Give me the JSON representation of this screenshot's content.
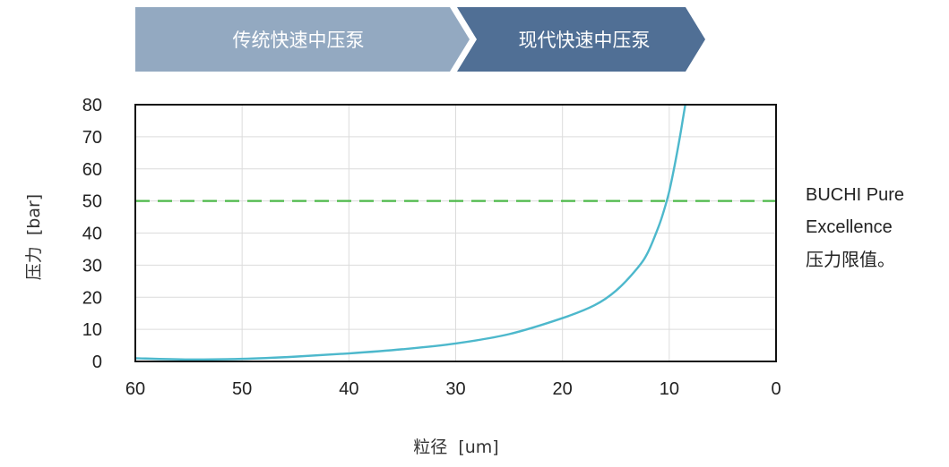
{
  "banner": {
    "left_label": "传统快速中压泵",
    "right_label": "现代快速中压泵",
    "left_color": "#93a9c1",
    "right_color": "#506f95"
  },
  "chart_data": {
    "type": "line",
    "xlabel": "粒径  [um]",
    "ylabel": "压力  [bar]",
    "xlim": [
      60,
      0
    ],
    "ylim": [
      0,
      80
    ],
    "x_ticks": [
      "60",
      "50",
      "40",
      "30",
      "20",
      "10",
      "0"
    ],
    "y_ticks": [
      "0",
      "10",
      "20",
      "30",
      "40",
      "50",
      "60",
      "70",
      "80"
    ],
    "grid": true,
    "series": [
      {
        "color": "#4db8cc",
        "x": [
          60,
          55,
          50,
          45,
          40,
          35,
          30,
          25,
          20,
          17,
          15,
          13,
          12,
          11,
          10.5,
          10,
          9.5,
          9,
          8.7,
          8.5
        ],
        "y": [
          1,
          0.6,
          0.8,
          1.5,
          2.5,
          3.8,
          5.6,
          8.5,
          13.5,
          17.5,
          22,
          29,
          34,
          42,
          47,
          53,
          61,
          70,
          76,
          80
        ]
      }
    ],
    "reference_line": {
      "y": 50,
      "color": "#4cb848",
      "label_lines": [
        "BUCHI Pure",
        "Excellence",
        "压力限值。"
      ]
    }
  }
}
